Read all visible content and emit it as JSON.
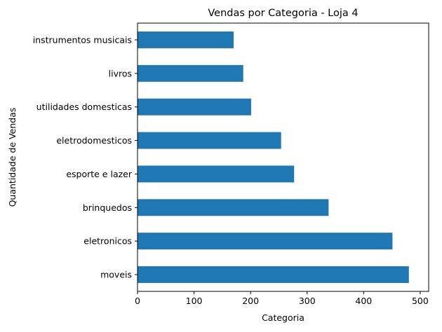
{
  "chart_data": {
    "type": "bar",
    "orientation": "horizontal",
    "title": "Vendas por Categoria - Loja 4",
    "xlabel": "Categoria",
    "ylabel": "Quantidade de Vendas",
    "categories": [
      "moveis",
      "eletronicos",
      "brinquedos",
      "esporte e lazer",
      "eletrodomesticos",
      "utilidades domesticas",
      "livros",
      "instrumentos musicais"
    ],
    "values": [
      480,
      451,
      338,
      277,
      254,
      201,
      187,
      170
    ],
    "xlim": [
      0,
      515
    ],
    "xticks": [
      0,
      100,
      200,
      300,
      400,
      500
    ],
    "grid": false,
    "legend": "none",
    "bar_color": "#1f77b4"
  }
}
